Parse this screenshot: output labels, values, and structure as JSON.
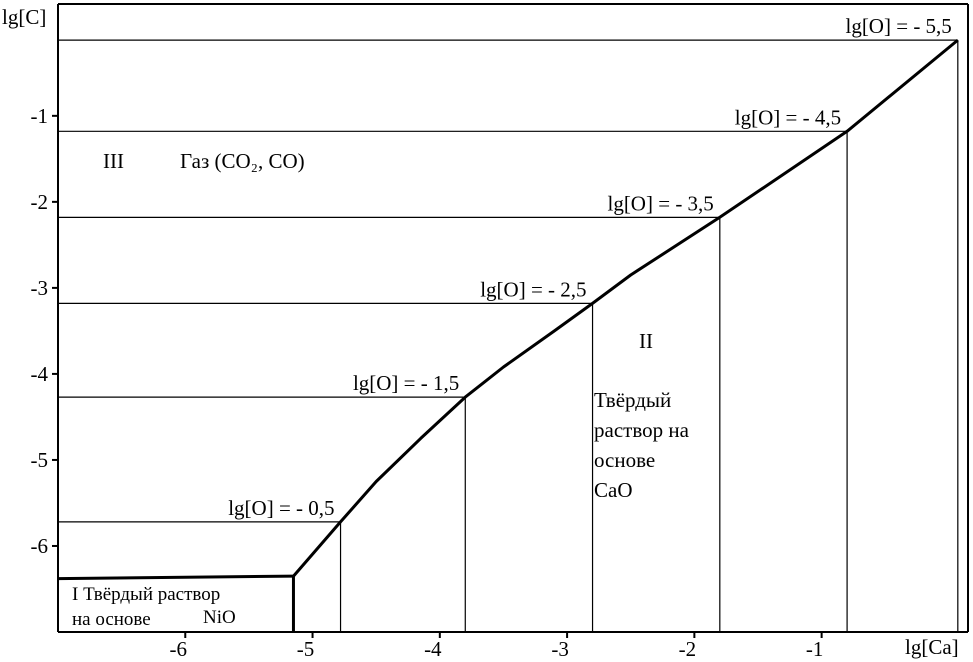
{
  "chart_data": {
    "type": "line",
    "title": "",
    "xlabel": "lg[Ca]",
    "ylabel": "lg[C]",
    "xlim": [
      -7.0,
      0.15
    ],
    "ylim": [
      -7.0,
      0.3
    ],
    "xticks": [
      -6,
      -5,
      -4,
      -3,
      -2,
      -1
    ],
    "xtick_labels": [
      "-6",
      "-5",
      "-4",
      "-3",
      "-2",
      "-1"
    ],
    "yticks": [
      -1,
      -2,
      -3,
      -4,
      -5,
      -6
    ],
    "ytick_labels": [
      "-1",
      "-2",
      "-3",
      "-4",
      "-5",
      "-6"
    ],
    "grid": false,
    "boundary": {
      "x": [
        -5.15,
        -4.78,
        -4.5,
        -4.15,
        -3.8,
        -3.5,
        -3.1,
        -2.8,
        -2.5,
        -1.8,
        -0.8,
        0.07
      ],
      "y": [
        -6.35,
        -5.72,
        -5.25,
        -4.75,
        -4.27,
        -3.92,
        -3.5,
        -3.18,
        -2.85,
        -2.18,
        -1.18,
        -0.12
      ]
    },
    "isoconcentration_lines": [
      {
        "label": "lg[O] = - 0,5",
        "y": -5.72,
        "x_end": -4.78
      },
      {
        "label": "lg[O] = - 1,5",
        "y": -4.27,
        "x_end": -3.8
      },
      {
        "label": "lg[O] = - 2,5",
        "y": -3.18,
        "x_end": -2.8
      },
      {
        "label": "lg[O] = - 3,5",
        "y": -2.18,
        "x_end": -1.8
      },
      {
        "label": "lg[O] = - 4,5",
        "y": -1.18,
        "x_end": -0.8
      },
      {
        "label": "lg[O] = - 5,5",
        "y": -0.12,
        "x_end": 0.07
      }
    ],
    "phase_region_I": {
      "y_top": -6.38,
      "x_right": -5.15
    },
    "regions": [
      {
        "id": "III",
        "numeral": "III",
        "lines": [
          "Газ (CO₂, CO)"
        ]
      },
      {
        "id": "II",
        "numeral": "II",
        "lines": [
          "Твёрдый",
          "раствор на",
          "основе",
          "CaO"
        ]
      },
      {
        "id": "I",
        "lines": [
          "I Твёрдый раствор",
          "на основе",
          "NiO"
        ]
      }
    ]
  }
}
